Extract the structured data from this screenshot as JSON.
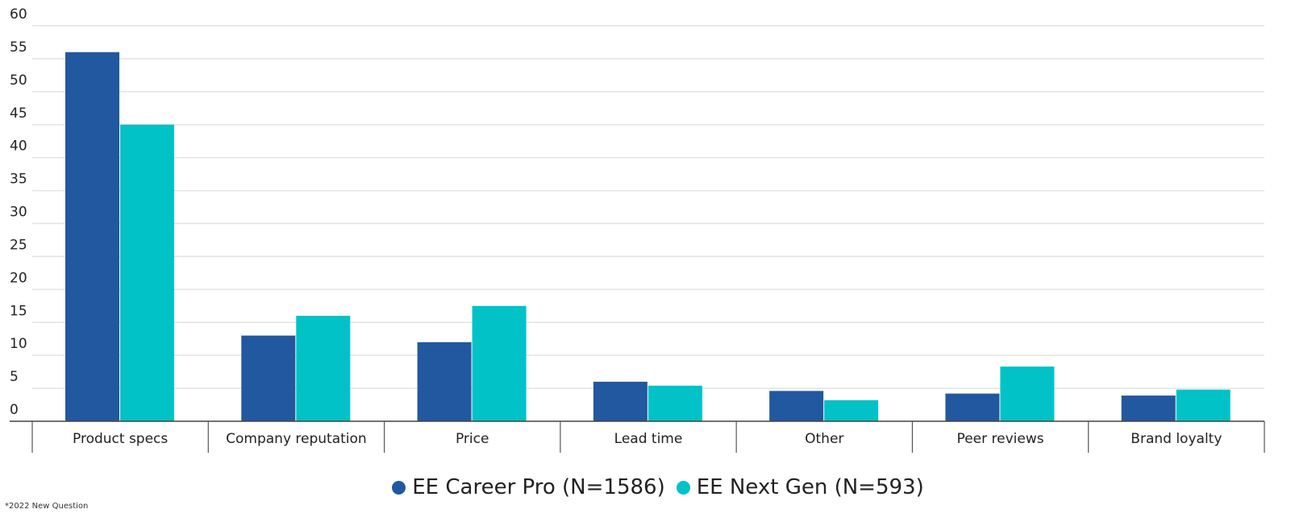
{
  "chart_data": {
    "type": "bar",
    "categories": [
      "Product specs",
      "Company reputation",
      "Price",
      "Lead time",
      "Other",
      "Peer reviews",
      "Brand loyalty"
    ],
    "series": [
      {
        "name": "EE Career Pro (N=1586)",
        "color": "#22589f",
        "values": [
          56,
          13,
          12,
          6,
          4.6,
          4.2,
          3.9
        ]
      },
      {
        "name": "EE Next Gen (N=593)",
        "color": "#00c2c7",
        "values": [
          45,
          16,
          17.5,
          5.4,
          3.2,
          8.3,
          4.8
        ]
      }
    ],
    "ylim": [
      0,
      60
    ],
    "yticks": [
      0,
      5,
      10,
      15,
      20,
      25,
      30,
      35,
      40,
      45,
      50,
      55,
      60
    ],
    "grid": true,
    "legend": "bottom",
    "footnote": "*2022 New Question"
  }
}
